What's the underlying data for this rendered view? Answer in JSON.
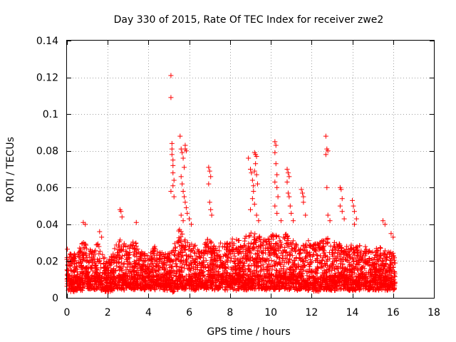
{
  "chart_data": {
    "type": "scatter",
    "title": "Day 330 of 2015, Rate Of TEC Index for receiver zwe2",
    "xlabel": "GPS time / hours",
    "ylabel": "ROTI / TECUs",
    "xlim": [
      0,
      18
    ],
    "ylim": [
      0,
      0.14
    ],
    "xticks": [
      0,
      2,
      4,
      6,
      8,
      10,
      12,
      14,
      16,
      18
    ],
    "xtick_labels": [
      "0",
      "2",
      "4",
      "6",
      "8",
      "10",
      "12",
      "14",
      "16",
      "18"
    ],
    "yticks": [
      0,
      0.02,
      0.04,
      0.06,
      0.08,
      0.1,
      0.12,
      0.14
    ],
    "ytick_labels": [
      "0",
      "0.02",
      "0.04",
      "0.06",
      "0.08",
      "0.1",
      "0.12",
      "0.14"
    ],
    "grid": true,
    "marker": "+",
    "color": "#ff0000",
    "series": [
      {
        "name": "ROTI",
        "data_range_x": [
          0,
          16.1
        ],
        "envelope": {
          "x": [
            0,
            0.3,
            0.5,
            0.8,
            1.0,
            1.3,
            1.5,
            1.7,
            2.0,
            2.3,
            2.5,
            2.8,
            3.0,
            3.3,
            3.5,
            3.8,
            4.0,
            4.3,
            4.5,
            4.8,
            5.0,
            5.2,
            5.5,
            5.8,
            6.0,
            6.3,
            6.5,
            6.8,
            7.0,
            7.3,
            7.5,
            7.8,
            8.0,
            8.3,
            8.5,
            8.8,
            9.0,
            9.3,
            9.5,
            9.8,
            10.0,
            10.3,
            10.5,
            10.8,
            11.0,
            11.3,
            11.5,
            11.8,
            12.0,
            12.3,
            12.5,
            12.8,
            13.0,
            13.3,
            13.5,
            13.8,
            14.0,
            14.3,
            14.5,
            14.8,
            15.0,
            15.3,
            15.5,
            15.8,
            16.0,
            16.1
          ],
          "upper": [
            0.027,
            0.024,
            0.025,
            0.031,
            0.028,
            0.027,
            0.03,
            0.026,
            0.02,
            0.026,
            0.033,
            0.03,
            0.028,
            0.032,
            0.027,
            0.026,
            0.025,
            0.029,
            0.025,
            0.026,
            0.024,
            0.027,
            0.038,
            0.032,
            0.029,
            0.03,
            0.026,
            0.031,
            0.033,
            0.028,
            0.03,
            0.03,
            0.032,
            0.033,
            0.031,
            0.034,
            0.036,
            0.035,
            0.033,
            0.031,
            0.035,
            0.034,
            0.033,
            0.037,
            0.033,
            0.031,
            0.03,
            0.031,
            0.032,
            0.03,
            0.031,
            0.033,
            0.031,
            0.03,
            0.028,
            0.03,
            0.029,
            0.028,
            0.03,
            0.027,
            0.026,
            0.028,
            0.026,
            0.025,
            0.026,
            0.026
          ],
          "lower": [
            0.004,
            0.003,
            0.004,
            0.004,
            0.005,
            0.004,
            0.005,
            0.004,
            0.003,
            0.004,
            0.005,
            0.004,
            0.005,
            0.004,
            0.005,
            0.004,
            0.005,
            0.004,
            0.005,
            0.004,
            0.004,
            0.003,
            0.005,
            0.004,
            0.005,
            0.004,
            0.005,
            0.004,
            0.005,
            0.004,
            0.005,
            0.004,
            0.005,
            0.004,
            0.005,
            0.004,
            0.005,
            0.004,
            0.005,
            0.004,
            0.005,
            0.004,
            0.005,
            0.004,
            0.005,
            0.004,
            0.005,
            0.004,
            0.004,
            0.003,
            0.004,
            0.004,
            0.004,
            0.004,
            0.005,
            0.004,
            0.004,
            0.004,
            0.005,
            0.004,
            0.004,
            0.004,
            0.004,
            0.004,
            0.004,
            0.005
          ]
        },
        "points_per_hour": 190,
        "outliers": [
          [
            0.8,
            0.041
          ],
          [
            0.9,
            0.04
          ],
          [
            1.6,
            0.036
          ],
          [
            1.7,
            0.033
          ],
          [
            2.6,
            0.048
          ],
          [
            2.65,
            0.047
          ],
          [
            2.7,
            0.044
          ],
          [
            3.4,
            0.041
          ],
          [
            5.1,
            0.121
          ],
          [
            5.1,
            0.109
          ],
          [
            5.15,
            0.084
          ],
          [
            5.15,
            0.081
          ],
          [
            5.15,
            0.078
          ],
          [
            5.2,
            0.075
          ],
          [
            5.2,
            0.072
          ],
          [
            5.2,
            0.068
          ],
          [
            5.25,
            0.064
          ],
          [
            5.2,
            0.061
          ],
          [
            5.1,
            0.058
          ],
          [
            5.25,
            0.055
          ],
          [
            5.55,
            0.088
          ],
          [
            5.6,
            0.081
          ],
          [
            5.65,
            0.079
          ],
          [
            5.7,
            0.076
          ],
          [
            5.75,
            0.071
          ],
          [
            5.8,
            0.083
          ],
          [
            5.8,
            0.081
          ],
          [
            5.85,
            0.08
          ],
          [
            5.6,
            0.066
          ],
          [
            5.65,
            0.062
          ],
          [
            5.7,
            0.058
          ],
          [
            5.75,
            0.055
          ],
          [
            5.8,
            0.052
          ],
          [
            5.85,
            0.049
          ],
          [
            5.9,
            0.046
          ],
          [
            5.6,
            0.045
          ],
          [
            5.7,
            0.042
          ],
          [
            6.0,
            0.043
          ],
          [
            6.1,
            0.04
          ],
          [
            6.95,
            0.071
          ],
          [
            7.0,
            0.069
          ],
          [
            7.05,
            0.066
          ],
          [
            6.95,
            0.062
          ],
          [
            7.0,
            0.052
          ],
          [
            7.05,
            0.048
          ],
          [
            7.1,
            0.045
          ],
          [
            8.9,
            0.076
          ],
          [
            9.0,
            0.07
          ],
          [
            9.05,
            0.068
          ],
          [
            9.1,
            0.064
          ],
          [
            9.15,
            0.061
          ],
          [
            9.2,
            0.079
          ],
          [
            9.25,
            0.078
          ],
          [
            9.3,
            0.077
          ],
          [
            9.25,
            0.073
          ],
          [
            9.2,
            0.069
          ],
          [
            9.3,
            0.067
          ],
          [
            9.35,
            0.062
          ],
          [
            9.15,
            0.058
          ],
          [
            9.1,
            0.054
          ],
          [
            9.2,
            0.051
          ],
          [
            9.0,
            0.048
          ],
          [
            9.3,
            0.045
          ],
          [
            9.4,
            0.042
          ],
          [
            10.2,
            0.085
          ],
          [
            10.25,
            0.083
          ],
          [
            10.2,
            0.079
          ],
          [
            10.25,
            0.073
          ],
          [
            10.3,
            0.067
          ],
          [
            10.2,
            0.063
          ],
          [
            10.3,
            0.06
          ],
          [
            10.35,
            0.055
          ],
          [
            10.2,
            0.05
          ],
          [
            10.3,
            0.046
          ],
          [
            10.5,
            0.042
          ],
          [
            10.8,
            0.07
          ],
          [
            10.85,
            0.068
          ],
          [
            10.9,
            0.066
          ],
          [
            10.8,
            0.063
          ],
          [
            10.85,
            0.057
          ],
          [
            10.9,
            0.055
          ],
          [
            10.95,
            0.05
          ],
          [
            11.0,
            0.046
          ],
          [
            11.1,
            0.042
          ],
          [
            11.5,
            0.059
          ],
          [
            11.55,
            0.057
          ],
          [
            11.6,
            0.055
          ],
          [
            11.6,
            0.052
          ],
          [
            11.7,
            0.045
          ],
          [
            12.7,
            0.088
          ],
          [
            12.75,
            0.081
          ],
          [
            12.8,
            0.08
          ],
          [
            12.7,
            0.078
          ],
          [
            12.75,
            0.06
          ],
          [
            12.8,
            0.045
          ],
          [
            12.9,
            0.042
          ],
          [
            13.4,
            0.06
          ],
          [
            13.45,
            0.059
          ],
          [
            13.5,
            0.054
          ],
          [
            13.4,
            0.05
          ],
          [
            13.5,
            0.047
          ],
          [
            13.6,
            0.043
          ],
          [
            14.0,
            0.053
          ],
          [
            14.05,
            0.05
          ],
          [
            14.1,
            0.047
          ],
          [
            14.2,
            0.043
          ],
          [
            14.1,
            0.04
          ],
          [
            15.5,
            0.042
          ],
          [
            15.6,
            0.04
          ],
          [
            15.9,
            0.035
          ],
          [
            16.0,
            0.033
          ]
        ]
      }
    ]
  }
}
